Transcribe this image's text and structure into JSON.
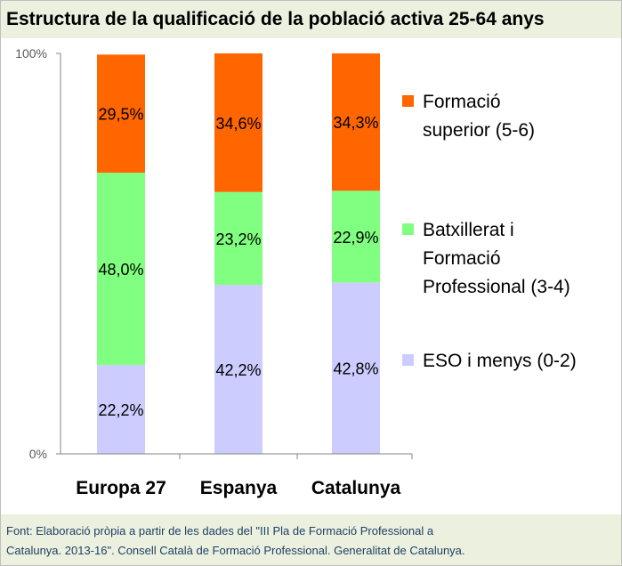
{
  "title": "Estructura de la qualificació de la població activa 25-64 anys",
  "footer": {
    "line1": "Font: Elaboració pròpia a partir de les dades del \"III Pla de Formació Professional a",
    "line2": "Catalunya. 2013-16\". Consell Català de Formació Professional. Generalitat de Catalunya."
  },
  "chart_data": {
    "type": "bar",
    "stacked": true,
    "percent_stacked": true,
    "categories": [
      "Europa 27",
      "Espanya",
      "Catalunya"
    ],
    "series": [
      {
        "name": "ESO i menys (0-2)",
        "color": "#ccccff",
        "values": [
          22.2,
          42.2,
          42.8
        ],
        "labels": [
          "22,2%",
          "42,2%",
          "42,8%"
        ]
      },
      {
        "name": "Batxillerat i Formació Professional (3-4)",
        "color": "#80ff80",
        "values": [
          48.0,
          23.2,
          22.9
        ],
        "labels": [
          "48,0%",
          "23,2%",
          "22,9%"
        ]
      },
      {
        "name": "Formació superior (5-6)",
        "color": "#ff6600",
        "values": [
          29.5,
          34.6,
          34.3
        ],
        "labels": [
          "29,5%",
          "34,6%",
          "34,3%"
        ]
      }
    ],
    "y_ticks": [
      "0%",
      "100%"
    ],
    "ylim": [
      0,
      100
    ],
    "legend_position": "right",
    "legend_lines": [
      [
        "Formació",
        "superior (5-6)"
      ],
      [
        "Batxillerat i",
        "Formació",
        "Professional (3-4)"
      ],
      [
        "ESO i menys (0-2)"
      ]
    ],
    "grid": false
  }
}
